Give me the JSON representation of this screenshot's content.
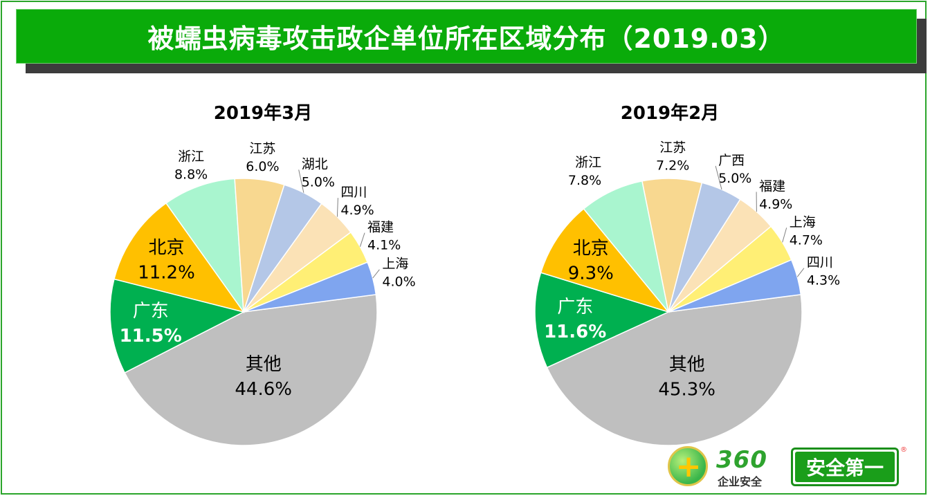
{
  "title": "被蠕虫病毒攻击政企单位所在区域分布（2019.03）",
  "colors": {
    "title_bg": "#0aab0a",
    "frame": "#2aa52a"
  },
  "chart_data": [
    {
      "type": "pie",
      "title": "2019年3月",
      "slices": [
        {
          "label": "其他",
          "value": 44.6,
          "display": "44.6%",
          "color": "#bfbfbf"
        },
        {
          "label": "广东",
          "value": 11.5,
          "display": "11.5%",
          "color": "#00b050"
        },
        {
          "label": "北京",
          "value": 11.2,
          "display": "11.2%",
          "color": "#ffc000"
        },
        {
          "label": "浙江",
          "value": 8.8,
          "display": "8.8%",
          "color": "#a9f5cf"
        },
        {
          "label": "江苏",
          "value": 6.0,
          "display": "6.0%",
          "color": "#f8d890"
        },
        {
          "label": "湖北",
          "value": 5.0,
          "display": "5.0%",
          "color": "#b4c7e7"
        },
        {
          "label": "四川",
          "value": 4.9,
          "display": "4.9%",
          "color": "#fbe2b6"
        },
        {
          "label": "福建",
          "value": 4.1,
          "display": "4.1%",
          "color": "#ffef75"
        },
        {
          "label": "上海",
          "value": 4.0,
          "display": "4.0%",
          "color": "#7fa5ef"
        }
      ]
    },
    {
      "type": "pie",
      "title": "2019年2月",
      "slices": [
        {
          "label": "其他",
          "value": 45.3,
          "display": "45.3%",
          "color": "#bfbfbf"
        },
        {
          "label": "广东",
          "value": 11.6,
          "display": "11.6%",
          "color": "#00b050"
        },
        {
          "label": "北京",
          "value": 9.3,
          "display": "9.3%",
          "color": "#ffc000"
        },
        {
          "label": "浙江",
          "value": 7.8,
          "display": "7.8%",
          "color": "#a9f5cf"
        },
        {
          "label": "江苏",
          "value": 7.2,
          "display": "7.2%",
          "color": "#f8d890"
        },
        {
          "label": "广西",
          "value": 5.0,
          "display": "5.0%",
          "color": "#b4c7e7"
        },
        {
          "label": "福建",
          "value": 4.9,
          "display": "4.9%",
          "color": "#fbe2b6"
        },
        {
          "label": "上海",
          "value": 4.7,
          "display": "4.7%",
          "color": "#ffef75"
        },
        {
          "label": "四川",
          "value": 4.3,
          "display": "4.3%",
          "color": "#7fa5ef"
        }
      ]
    }
  ],
  "logo": {
    "brand_number": "360",
    "brand_sub": "企业安全",
    "badge": "安全第一",
    "reg_mark": "®"
  }
}
